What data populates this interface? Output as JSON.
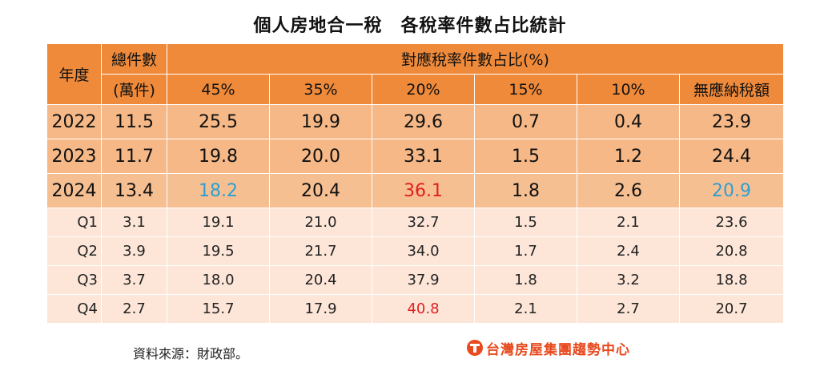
{
  "title": "個人房地合一稅　各稅率件數占比統計",
  "source": "資料來源：財政部。",
  "logo_text": "台灣房屋集團趨勢中心",
  "colors": {
    "header": "#ef8a3a",
    "year_row": "#f6bf92",
    "quarter_row": "#fde6d8",
    "highlight_low": "#2e9fd1",
    "highlight_high": "#e02020",
    "logo": "#e8491d"
  },
  "chart_data": {
    "type": "table",
    "headers": {
      "year": "年度",
      "total_line1": "總件數",
      "total_line2": "(萬件)",
      "group": "對應稅率件數占比(%)",
      "rates": [
        "45%",
        "35%",
        "20%",
        "15%",
        "10%",
        "無應納稅額"
      ]
    },
    "rows": [
      {
        "label": "2022",
        "total": "11.5",
        "values": [
          "25.5",
          "19.9",
          "29.6",
          "0.7",
          "0.4",
          "23.9"
        ]
      },
      {
        "label": "2023",
        "total": "11.7",
        "values": [
          "19.8",
          "20.0",
          "33.1",
          "1.5",
          "1.2",
          "24.4"
        ]
      },
      {
        "label": "2024",
        "total": "13.4",
        "values": [
          "18.2",
          "20.4",
          "36.1",
          "1.8",
          "2.6",
          "20.9"
        ]
      },
      {
        "label": "Q1",
        "total": "3.1",
        "values": [
          "19.1",
          "21.0",
          "32.7",
          "1.5",
          "2.1",
          "23.6"
        ]
      },
      {
        "label": "Q2",
        "total": "3.9",
        "values": [
          "19.5",
          "21.7",
          "34.0",
          "1.7",
          "2.4",
          "20.8"
        ]
      },
      {
        "label": "Q3",
        "total": "3.7",
        "values": [
          "18.0",
          "20.4",
          "37.9",
          "1.8",
          "3.2",
          "18.8"
        ]
      },
      {
        "label": "Q4",
        "total": "2.7",
        "values": [
          "15.7",
          "17.9",
          "40.8",
          "2.1",
          "2.7",
          "20.7"
        ]
      }
    ]
  }
}
